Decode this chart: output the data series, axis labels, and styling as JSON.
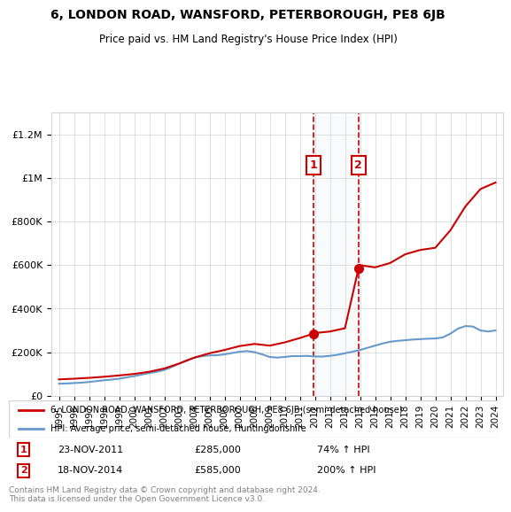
{
  "title": "6, LONDON ROAD, WANSFORD, PETERBOROUGH, PE8 6JB",
  "subtitle": "Price paid vs. HM Land Registry's House Price Index (HPI)",
  "legend_line1": "6, LONDON ROAD, WANSFORD, PETERBOROUGH, PE8 6JB (semi-detached house)",
  "legend_line2": "HPI: Average price, semi-detached house, Huntingdonshire",
  "footer": "Contains HM Land Registry data © Crown copyright and database right 2024.\nThis data is licensed under the Open Government Licence v3.0.",
  "sale1_date": "23-NOV-2011",
  "sale1_price": 285000,
  "sale1_pct": "74%",
  "sale2_date": "18-NOV-2014",
  "sale2_price": 585000,
  "sale2_pct": "200%",
  "sale1_year": 2011.9,
  "sale2_year": 2014.9,
  "property_color": "#cc0000",
  "hpi_color": "#6699cc",
  "shade_color": "#d6e4f0",
  "ylim": [
    0,
    1300000
  ],
  "xlim": [
    1994.5,
    2024.5
  ],
  "hpi_data": {
    "years": [
      1995,
      1995.5,
      1996,
      1996.5,
      1997,
      1997.5,
      1998,
      1998.5,
      1999,
      1999.5,
      2000,
      2000.5,
      2001,
      2001.5,
      2002,
      2002.5,
      2003,
      2003.5,
      2004,
      2004.5,
      2005,
      2005.5,
      2006,
      2006.5,
      2007,
      2007.5,
      2008,
      2008.5,
      2009,
      2009.5,
      2010,
      2010.5,
      2011,
      2011.5,
      2012,
      2012.5,
      2013,
      2013.5,
      2014,
      2014.5,
      2015,
      2015.5,
      2016,
      2016.5,
      2017,
      2017.5,
      2018,
      2018.5,
      2019,
      2019.5,
      2020,
      2020.5,
      2021,
      2021.5,
      2022,
      2022.5,
      2023,
      2023.5,
      2024
    ],
    "values": [
      55000,
      56000,
      58000,
      60000,
      63000,
      67000,
      71000,
      74000,
      78000,
      84000,
      90000,
      97000,
      104000,
      110000,
      118000,
      132000,
      148000,
      163000,
      175000,
      182000,
      185000,
      186000,
      190000,
      196000,
      202000,
      205000,
      200000,
      190000,
      178000,
      175000,
      178000,
      182000,
      182000,
      183000,
      180000,
      180000,
      183000,
      188000,
      195000,
      202000,
      210000,
      220000,
      230000,
      240000,
      248000,
      252000,
      255000,
      258000,
      260000,
      262000,
      263000,
      268000,
      285000,
      308000,
      320000,
      318000,
      300000,
      295000,
      300000
    ]
  },
  "property_data": {
    "years": [
      1995,
      1996,
      1997,
      1998,
      1999,
      2000,
      2001,
      2002,
      2003,
      2004,
      2005,
      2006,
      2007,
      2008,
      2009,
      2010,
      2011.0,
      2011.9,
      2012,
      2013,
      2014.0,
      2014.9,
      2015,
      2016,
      2017,
      2018,
      2019,
      2020,
      2021,
      2022,
      2023,
      2024
    ],
    "values": [
      75000,
      78000,
      82000,
      87000,
      93000,
      100000,
      110000,
      125000,
      148000,
      175000,
      195000,
      210000,
      228000,
      238000,
      230000,
      245000,
      265000,
      285000,
      288000,
      295000,
      310000,
      585000,
      600000,
      590000,
      610000,
      650000,
      670000,
      680000,
      760000,
      870000,
      950000,
      980000
    ]
  },
  "yticks": [
    0,
    200000,
    400000,
    600000,
    800000,
    1000000,
    1200000
  ],
  "ytick_labels": [
    "£0",
    "£200K",
    "£400K",
    "£600K",
    "£800K",
    "£1M",
    "£1.2M"
  ],
  "xticks": [
    1995,
    1996,
    1997,
    1998,
    1999,
    2000,
    2001,
    2002,
    2003,
    2004,
    2005,
    2006,
    2007,
    2008,
    2009,
    2010,
    2011,
    2012,
    2013,
    2014,
    2015,
    2016,
    2017,
    2018,
    2019,
    2020,
    2021,
    2022,
    2023,
    2024
  ]
}
